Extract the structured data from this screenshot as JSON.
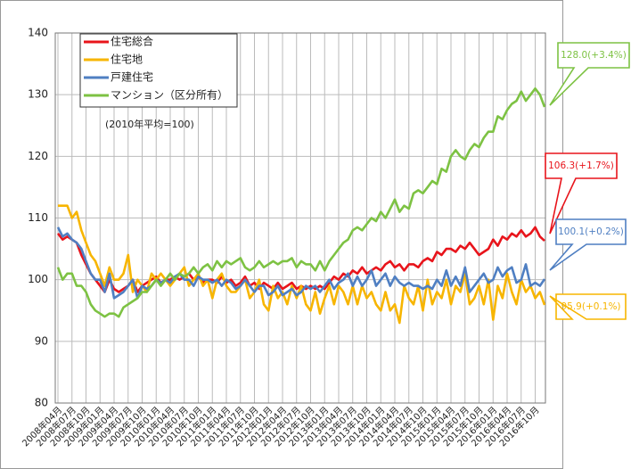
{
  "chart_data": {
    "type": "line",
    "note": "(2010年平均=100)",
    "categories": [
      "2008年04月",
      null,
      null,
      "2008年07月",
      null,
      null,
      "2008年10月",
      null,
      null,
      "2009年01月",
      null,
      null,
      "2009年04月",
      null,
      null,
      "2009年07月",
      null,
      null,
      "2009年10月",
      null,
      null,
      "2010年01月",
      null,
      null,
      "2010年04月",
      null,
      null,
      "2010年07月",
      null,
      null,
      "2010年10月",
      null,
      null,
      "2011年01月",
      null,
      null,
      "2011年04月",
      null,
      null,
      "2011年07月",
      null,
      null,
      "2011年10月",
      null,
      null,
      "2012年01月",
      null,
      null,
      "2012年04月",
      null,
      null,
      "2012年07月",
      null,
      null,
      "2012年10月",
      null,
      null,
      "2013年01月",
      null,
      null,
      "2013年04月",
      null,
      null,
      "2013年07月",
      null,
      null,
      "2013年10月",
      null,
      null,
      "2014年01月",
      null,
      null,
      "2014年04月",
      null,
      null,
      "2014年07月",
      null,
      null,
      "2014年10月",
      null,
      null,
      "2015年01月",
      null,
      null,
      "2015年04月",
      null,
      null,
      "2015年07月",
      null,
      null,
      "2015年10月",
      null,
      null,
      "2016年01月",
      null,
      null,
      "2016年04月",
      null,
      null,
      "2016年07月",
      null,
      null,
      "2016年10月",
      null,
      null
    ],
    "series": [
      {
        "name": "住宅総合",
        "color": "#e8141b",
        "values": [
          107.5,
          106.5,
          107,
          106.5,
          106,
          104,
          102.5,
          101,
          100,
          99,
          98,
          100,
          98.5,
          98,
          98.5,
          99,
          100,
          98,
          99,
          99.5,
          100,
          100.5,
          99.5,
          100,
          100,
          100.5,
          100,
          100.5,
          101,
          100,
          100.5,
          99.5,
          100,
          100,
          99.5,
          100.5,
          99.5,
          100,
          99,
          99.5,
          100.5,
          99,
          99.5,
          98.5,
          99.5,
          99,
          98.5,
          99.5,
          98.5,
          99,
          99.5,
          98.5,
          99,
          98.5,
          99,
          98.5,
          99,
          98.5,
          99.5,
          100.5,
          100,
          101,
          100.5,
          101.5,
          101,
          102,
          101,
          101.5,
          102,
          101.5,
          102.5,
          103,
          102,
          102.5,
          101.5,
          102.5,
          102.5,
          102,
          103,
          103.5,
          103,
          104.5,
          104,
          105,
          105,
          104.5,
          105.5,
          105,
          106,
          105,
          104,
          104.5,
          105,
          106.5,
          105.5,
          107,
          106.5,
          107.5,
          107,
          108,
          107,
          107.5,
          108.5,
          107,
          106.3
        ]
      },
      {
        "name": "住宅地",
        "color": "#f7b500",
        "values": [
          112,
          112,
          112,
          110,
          111,
          108,
          106,
          104,
          103,
          101,
          99,
          102,
          100,
          100,
          101,
          104,
          98,
          100,
          99,
          98,
          101,
          100,
          101,
          100,
          99,
          100,
          101,
          102,
          99,
          100,
          101,
          99,
          100,
          97,
          100,
          101,
          99,
          98,
          98,
          99,
          100,
          97,
          98,
          100,
          96,
          95,
          99,
          97,
          98,
          96,
          99,
          97,
          99,
          96,
          95,
          98,
          94.5,
          97,
          99,
          96,
          99,
          98,
          96,
          99,
          96,
          99,
          97,
          98,
          96,
          95,
          98,
          95,
          96,
          93,
          99,
          97,
          96,
          99,
          95,
          100,
          96,
          98,
          97,
          100,
          96,
          99,
          98,
          101,
          96,
          97,
          99,
          96,
          100,
          93.5,
          99,
          97,
          101,
          98,
          96,
          100,
          98,
          99,
          97,
          98,
          95.9
        ]
      },
      {
        "name": "戸建住宅",
        "color": "#4f7fc2",
        "values": [
          108.5,
          107,
          107.5,
          106.5,
          106,
          105,
          103,
          101,
          100,
          100,
          98,
          101,
          97,
          97.5,
          98,
          99,
          100,
          97,
          99,
          98.5,
          99,
          100,
          99.5,
          100,
          99.5,
          100.5,
          101,
          100,
          100,
          99,
          100.5,
          100,
          100,
          99.5,
          100,
          99,
          100,
          99.5,
          98.5,
          99,
          100,
          99,
          98,
          99,
          99,
          97.5,
          98,
          99,
          97.5,
          98,
          98.5,
          97.5,
          98,
          99,
          98.5,
          99,
          98,
          99,
          100,
          98.5,
          99.5,
          100,
          101,
          99,
          100.5,
          99,
          100,
          101.5,
          99,
          100,
          101,
          99,
          100.5,
          99.5,
          99,
          99.5,
          99,
          99,
          98.5,
          99,
          98.5,
          100,
          99,
          101.5,
          99,
          100.5,
          99,
          102,
          98,
          99,
          100,
          101,
          99.5,
          100,
          102,
          100.5,
          101.5,
          102,
          99.5,
          100,
          102.5,
          99,
          99.5,
          99,
          100.1
        ]
      },
      {
        "name": "マンション（区分所有）",
        "color": "#7dc243",
        "values": [
          102,
          100,
          101,
          101,
          99,
          99,
          98,
          96,
          95,
          94.5,
          94,
          94.5,
          94.5,
          94,
          95.5,
          96,
          96.5,
          97,
          98,
          98,
          99,
          100,
          99,
          100,
          101,
          100,
          101,
          100.5,
          101,
          102,
          101,
          102,
          102.5,
          101.5,
          103,
          102,
          103,
          102.5,
          103,
          103.5,
          102,
          101.5,
          102,
          103,
          102,
          102.5,
          103,
          102.5,
          103,
          103,
          103.5,
          102,
          103,
          102.5,
          102.5,
          101.5,
          103,
          101.5,
          103,
          104,
          105,
          106,
          106.5,
          108,
          108.5,
          108,
          109,
          110,
          109.5,
          111,
          110,
          111.5,
          113,
          111,
          112,
          111.5,
          114,
          114.5,
          114,
          115,
          116,
          115.5,
          118,
          117.5,
          120,
          121,
          120,
          119.5,
          121,
          122,
          121.5,
          123,
          124,
          124,
          126.5,
          126,
          127.5,
          128.5,
          129,
          130.5,
          129,
          130,
          131,
          130,
          128.0
        ]
      }
    ],
    "annotations": [
      "106.3(+1.7%)",
      "95.9(+0.1%)",
      "100.1(+0.2%)",
      "128.0(+3.4%)"
    ],
    "ylim": [
      80,
      140
    ],
    "yticks": [
      80,
      90,
      100,
      110,
      120,
      130,
      140
    ],
    "grid": true,
    "legend": "upper left"
  }
}
